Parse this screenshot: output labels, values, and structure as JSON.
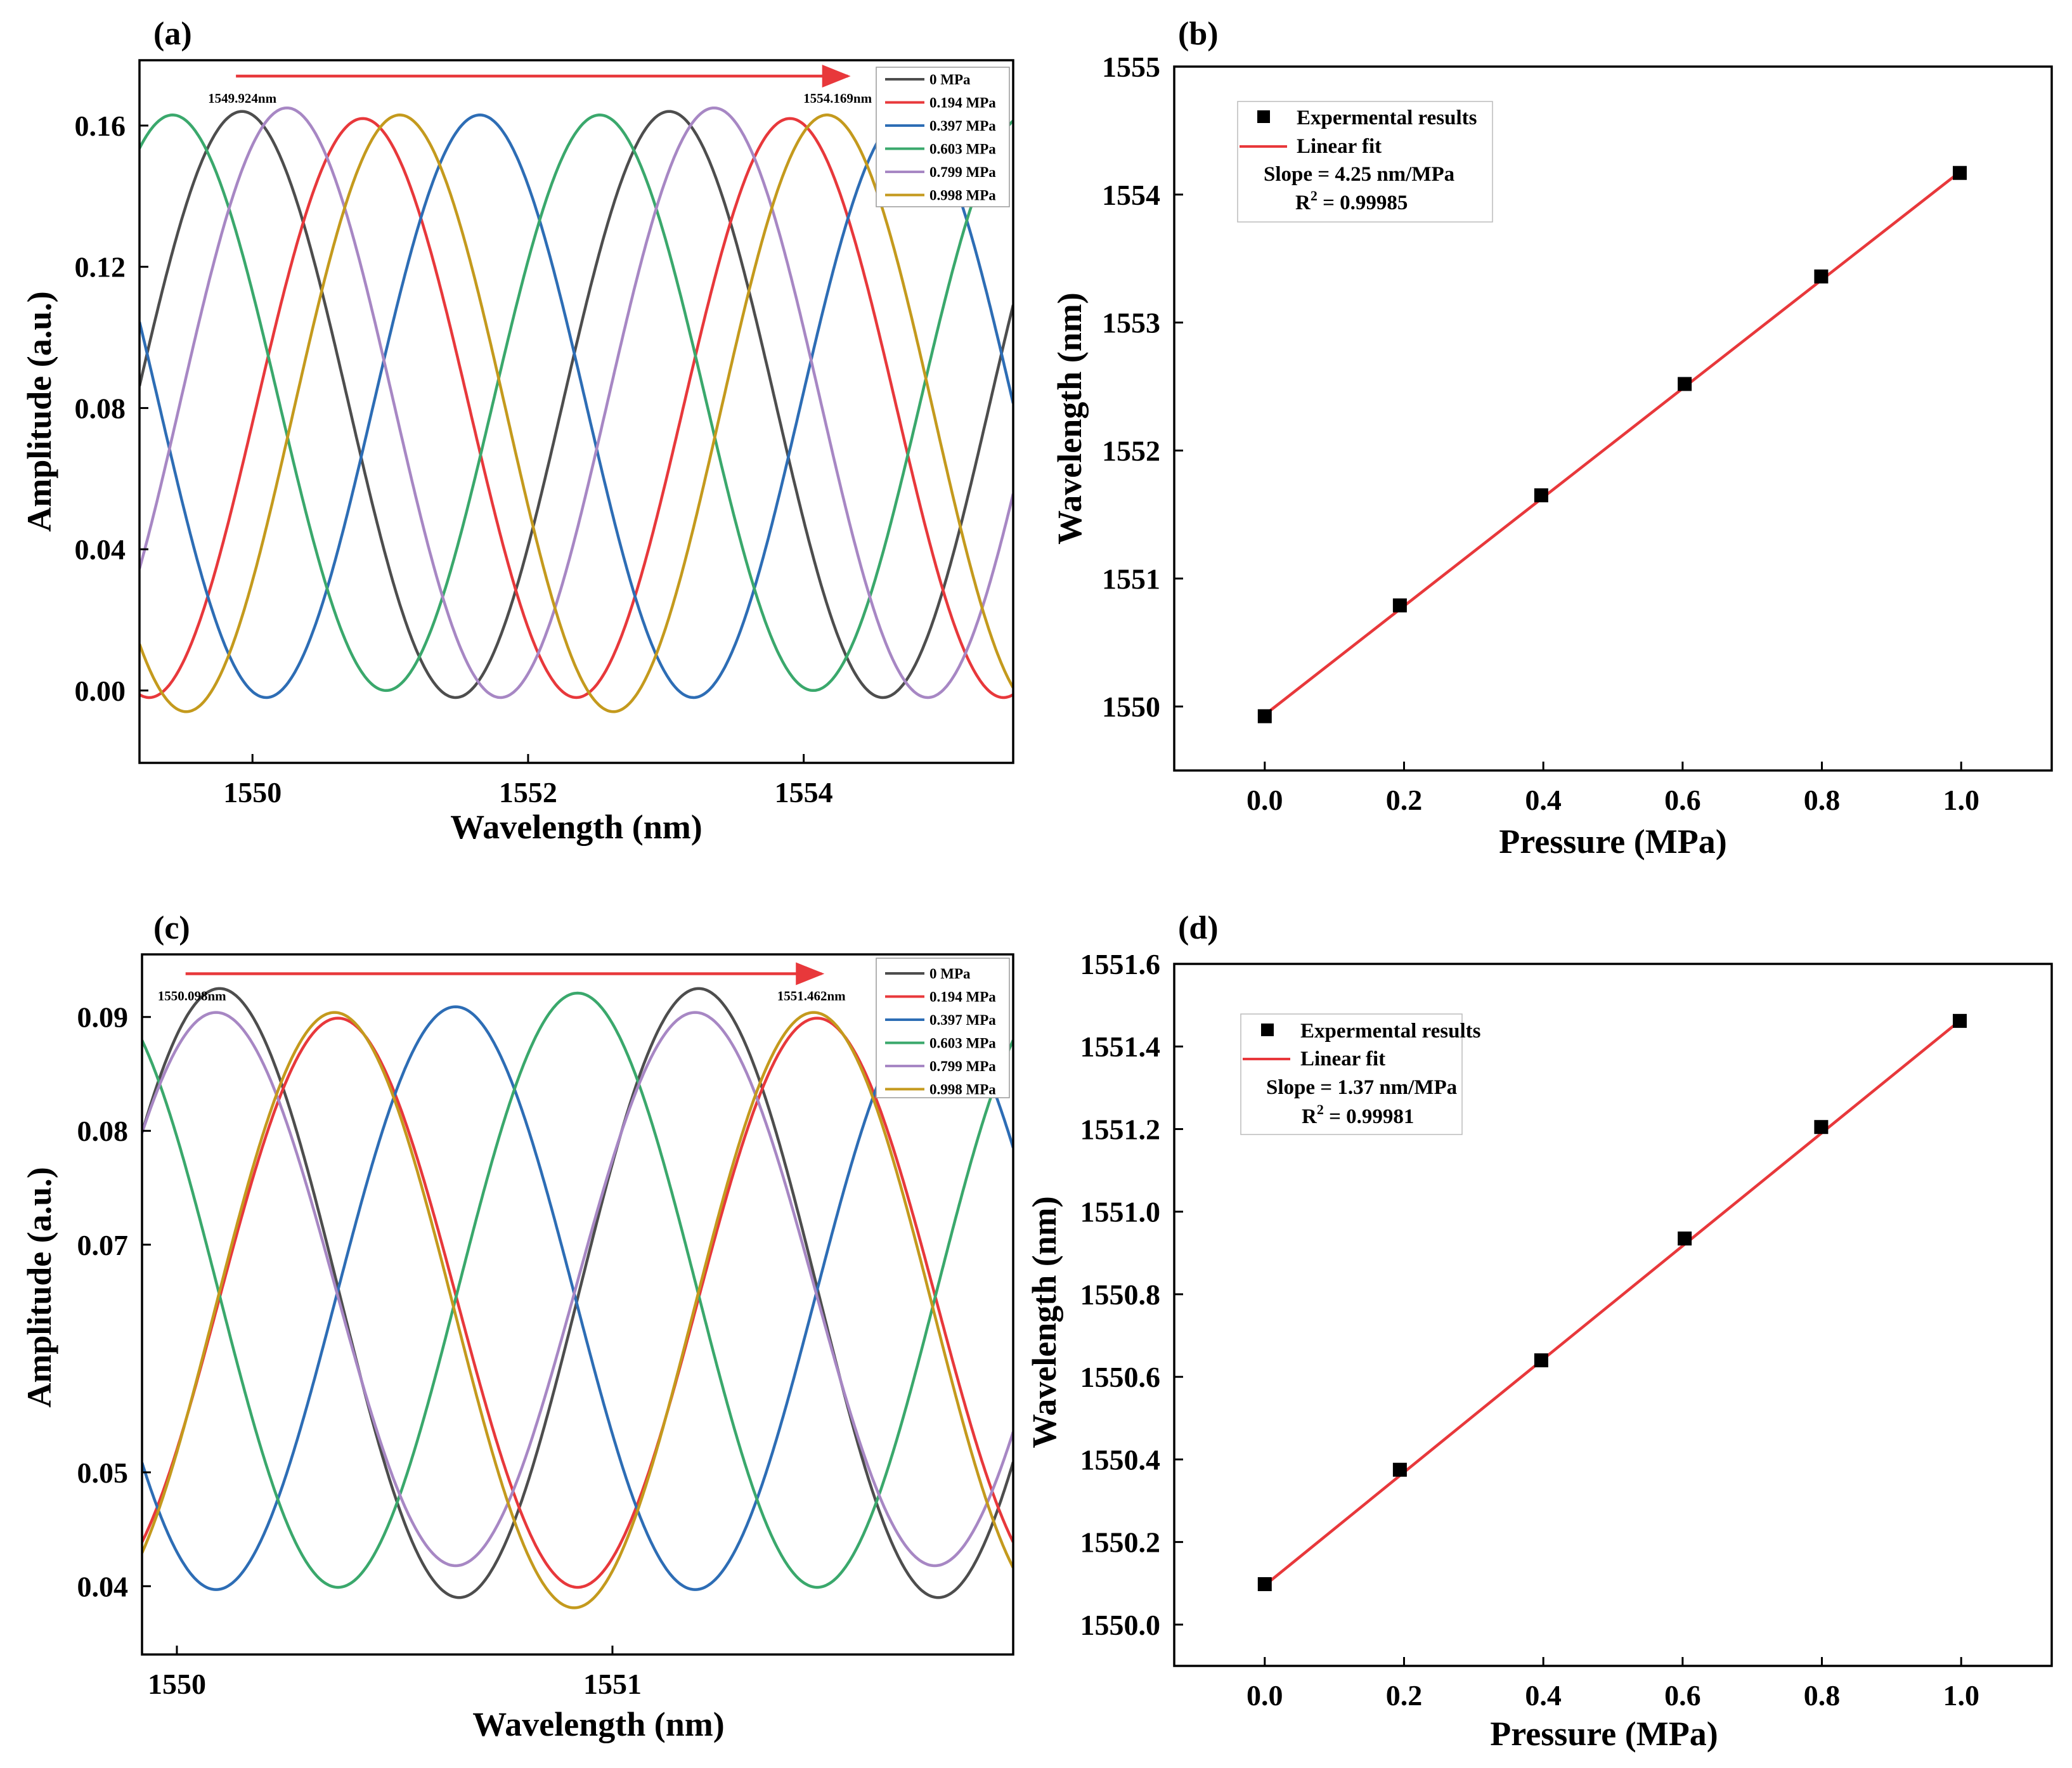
{
  "figure": {
    "panels": [
      {
        "label": "(a)"
      },
      {
        "label": "(b)"
      },
      {
        "label": "(c)"
      },
      {
        "label": "(d)"
      }
    ]
  },
  "chart_data": [
    {
      "id": "a",
      "type": "line",
      "title": "",
      "xlabel": "Wavelength (nm)",
      "ylabel": "Amplitude (a.u.)",
      "xlim": [
        1549.18,
        1555.52
      ],
      "ylim": [
        -0.0205,
        0.1785
      ],
      "xticks": [
        1550,
        1552,
        1554
      ],
      "xtick_labels": [
        "1550",
        "1552",
        "1554"
      ],
      "yticks": [
        0,
        0.04,
        0.08,
        0.12,
        0.16
      ],
      "ytick_labels": [
        "0.00",
        "0.04",
        "0.08",
        "0.12",
        "0.16"
      ],
      "legend_position": "top-right",
      "period_nm": 3.1,
      "series": [
        {
          "name": "0 MPa",
          "color": "#4d4d4d",
          "peak_x": 1549.924,
          "max": 0.164,
          "min": -0.002
        },
        {
          "name": "0.194 MPa",
          "color": "#e8383b",
          "peak_x": 1550.8,
          "max": 0.162,
          "min": -0.002
        },
        {
          "name": "0.397 MPa",
          "color": "#2d6db5",
          "peak_x": 1551.65,
          "max": 0.163,
          "min": -0.002
        },
        {
          "name": "0.603 MPa",
          "color": "#3aa86c",
          "peak_x": 1552.52,
          "max": 0.163,
          "min": 0.0
        },
        {
          "name": "0.799 MPa",
          "color": "#a787c4",
          "peak_x": 1553.35,
          "max": 0.165,
          "min": -0.002
        },
        {
          "name": "0.998 MPa",
          "color": "#c49a1d",
          "peak_x": 1554.169,
          "max": 0.163,
          "min": -0.006
        }
      ],
      "annotations": {
        "start_label": "1549.924nm",
        "end_label": "1554.169nm",
        "arrow_from": 1549.88,
        "arrow_to": 1554.32,
        "arrow_y": 0.174,
        "arrow_color": "#e8383b"
      }
    },
    {
      "id": "b",
      "type": "scatter",
      "title": "",
      "xlabel": "Pressure (MPa)",
      "ylabel": "Wavelength (nm)",
      "xlim": [
        -0.13,
        1.13
      ],
      "ylim": [
        1549.5,
        1555.0
      ],
      "xticks": [
        0,
        0.2,
        0.4,
        0.6,
        0.8,
        1.0
      ],
      "xtick_labels": [
        "0.0",
        "0.2",
        "0.4",
        "0.6",
        "0.8",
        "1.0"
      ],
      "yticks": [
        1550,
        1551,
        1552,
        1553,
        1554,
        1555
      ],
      "ytick_labels": [
        "1550",
        "1551",
        "1552",
        "1553",
        "1554",
        "1555"
      ],
      "x": [
        0,
        0.194,
        0.397,
        0.603,
        0.799,
        0.998
      ],
      "y": [
        1549.924,
        1550.79,
        1551.65,
        1552.52,
        1553.36,
        1554.169
      ],
      "fit": {
        "x0": 0,
        "y0": 1549.935,
        "x1": 1.0,
        "y1": 1554.185,
        "color": "#e8383b"
      },
      "legend_position": "top-left",
      "legend": {
        "marker_label": "Expermental results",
        "line_label": "Linear fit",
        "slope_text": "Slope = 4.25 nm/MPa",
        "r2_prefix": "R",
        "r2_sup": "2",
        "r2_value": " = 0.99985"
      }
    },
    {
      "id": "c",
      "type": "line",
      "title": "",
      "xlabel": "Wavelength (nm)",
      "ylabel": "Amplitude (a.u.)",
      "xlim": [
        1549.92,
        1551.92
      ],
      "ylim": [
        0.034,
        0.0955
      ],
      "xticks": [
        1550,
        1551
      ],
      "xtick_labels": [
        "1550",
        "1551"
      ],
      "yticks": [
        0.04,
        0.05,
        0.07,
        0.08,
        0.09
      ],
      "ytick_labels": [
        "0.04",
        "0.05",
        "0.07",
        "0.08",
        "0.09"
      ],
      "legend_position": "top-right",
      "period_nm": 1.1,
      "series": [
        {
          "name": "0 MPa",
          "color": "#4d4d4d",
          "peak_x": 1550.098,
          "max": 0.0925,
          "min": 0.039
        },
        {
          "name": "0.194 MPa",
          "color": "#e8383b",
          "peak_x": 1550.37,
          "max": 0.0899,
          "min": 0.0399
        },
        {
          "name": "0.397 MPa",
          "color": "#2d6db5",
          "peak_x": 1550.64,
          "max": 0.0909,
          "min": 0.0397
        },
        {
          "name": "0.603 MPa",
          "color": "#3aa86c",
          "peak_x": 1550.92,
          "max": 0.0921,
          "min": 0.0399
        },
        {
          "name": "0.799 MPa",
          "color": "#a787c4",
          "peak_x": 1551.19,
          "max": 0.0904,
          "min": 0.0418
        },
        {
          "name": "0.998 MPa",
          "color": "#c49a1d",
          "peak_x": 1551.462,
          "max": 0.0904,
          "min": 0.0381
        }
      ],
      "annotations": {
        "start_label": "1550.098nm",
        "end_label": "1551.462nm",
        "arrow_from": 1550.02,
        "arrow_to": 1551.48,
        "arrow_y": 0.0938,
        "arrow_color": "#e8383b"
      }
    },
    {
      "id": "d",
      "type": "scatter",
      "title": "",
      "xlabel": "Pressure (MPa)",
      "ylabel": "Wavelength (nm)",
      "xlim": [
        -0.13,
        1.13
      ],
      "ylim": [
        1549.9,
        1551.6
      ],
      "xticks": [
        0,
        0.2,
        0.4,
        0.6,
        0.8,
        1.0
      ],
      "xtick_labels": [
        "0.0",
        "0.2",
        "0.4",
        "0.6",
        "0.8",
        "1.0"
      ],
      "yticks": [
        1550.0,
        1550.2,
        1550.4,
        1550.6,
        1550.8,
        1551.0,
        1551.2,
        1551.4,
        1551.6
      ],
      "ytick_labels": [
        "1550.0",
        "1550.2",
        "1550.4",
        "1550.6",
        "1550.8",
        "1551.0",
        "1551.2",
        "1551.4",
        "1551.6"
      ],
      "x": [
        0,
        0.194,
        0.397,
        0.603,
        0.799,
        0.998
      ],
      "y": [
        1550.098,
        1550.375,
        1550.64,
        1550.935,
        1551.205,
        1551.462
      ],
      "fit": {
        "x0": 0,
        "y0": 1550.095,
        "x1": 1.0,
        "y1": 1551.465,
        "color": "#e8383b"
      },
      "legend_position": "top-left",
      "legend": {
        "marker_label": "Expermental results",
        "line_label": "Linear fit",
        "slope_text": "Slope = 1.37 nm/MPa",
        "r2_prefix": "R",
        "r2_sup": "2",
        "r2_value": " = 0.99981"
      }
    }
  ]
}
